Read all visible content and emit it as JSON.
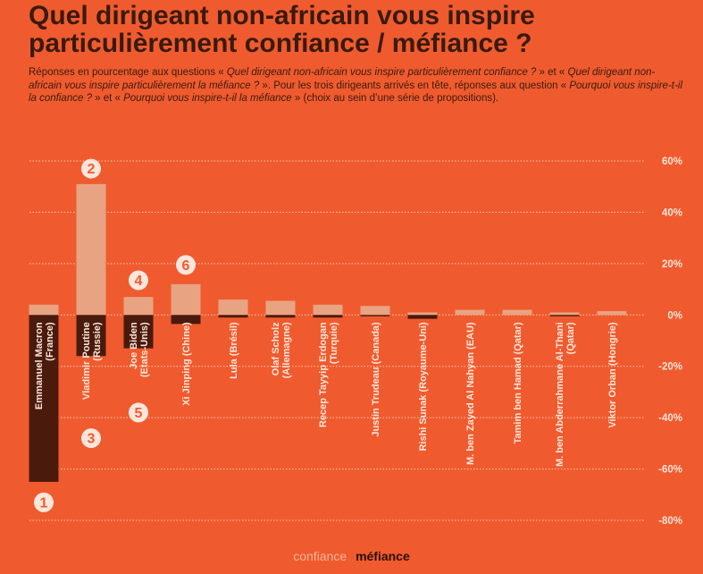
{
  "title_line1": "Quel dirigeant non-africain vous inspire",
  "title_line2": "particulièrement confiance / méfiance ?",
  "subtitle": {
    "p1": "Réponses en pourcentage aux questions « ",
    "q1": "Quel dirigeant non-africain vous inspire particulièrement confiance ?",
    "p2": " » et « ",
    "q2": "Quel dirigeant non-africain vous inspire particulièrement la méfiance ?",
    "p3": " ». Pour les trois dirigeants arrivés en tête, réponses aux question « ",
    "q3": "Pourquoi vous inspire-t-il la confiance ?",
    "p4": " » et « ",
    "q4": "Pourquoi vous inspire-t-il la méfiance",
    "p5": " » (choix au sein d’une série de propositions)."
  },
  "legend": {
    "confiance": "confiance",
    "mefiance": "méfiance"
  },
  "colors": {
    "background": "#ef5b2e",
    "confiance": "#e8a383",
    "mefiance": "#4a1a0c",
    "grid": "#f7c7b3",
    "badge_bg": "#fbe6dc",
    "badge_text": "#ef5b2e"
  },
  "chart_data": {
    "type": "bar",
    "ylim": [
      -80,
      60
    ],
    "yticks": [
      60,
      40,
      20,
      0,
      -20,
      -40,
      -60,
      -80
    ],
    "ytick_labels": [
      "60%",
      "40%",
      "20%",
      "0%",
      "-20%",
      "-40%",
      "-60%",
      "-80%"
    ],
    "categories": [
      {
        "name": "Emmanuel Macron",
        "country": "(France)"
      },
      {
        "name": "Vladimir Poutine",
        "country": "(Russie)"
      },
      {
        "name": "Joe Biden",
        "country": "(Etats-Unis)"
      },
      {
        "name": "Xi Jinping (Chine)",
        "country": ""
      },
      {
        "name": "Lula (Brésil)",
        "country": ""
      },
      {
        "name": "Olaf Scholz",
        "country": "(Allemagne)"
      },
      {
        "name": "Recep Tayyip Erdogan",
        "country": "(Turquie)"
      },
      {
        "name": "Justin Trudeau (Canada)",
        "country": ""
      },
      {
        "name": "Rishi Sunak (Royaume-Uni)",
        "country": ""
      },
      {
        "name": "M. ben Zayed Al Nahyan (EAU)",
        "country": ""
      },
      {
        "name": "Tamim ben Hamad (Qatar)",
        "country": ""
      },
      {
        "name": "M. ben Abderrahmane Al-Thani",
        "country": "(Qatar)"
      },
      {
        "name": "Viktor Orban (Hongrie)",
        "country": ""
      }
    ],
    "series": [
      {
        "name": "confiance",
        "values": [
          4,
          51,
          7,
          12,
          6,
          5.5,
          4,
          3.5,
          1,
          2,
          2,
          1,
          1.5
        ]
      },
      {
        "name": "méfiance",
        "values": [
          -65,
          -16,
          -13,
          -3.5,
          -1,
          -1,
          -1,
          -0.5,
          -1.5,
          0,
          0,
          -0.5,
          0
        ]
      }
    ],
    "badges": [
      {
        "label": "1",
        "category_index": 0,
        "value": -73
      },
      {
        "label": "2",
        "category_index": 1,
        "value": 57
      },
      {
        "label": "3",
        "category_index": 1,
        "value": -48
      },
      {
        "label": "4",
        "category_index": 2,
        "value": 13.5
      },
      {
        "label": "5",
        "category_index": 2,
        "value": -38
      },
      {
        "label": "6",
        "category_index": 3,
        "value": 19.5
      }
    ]
  }
}
